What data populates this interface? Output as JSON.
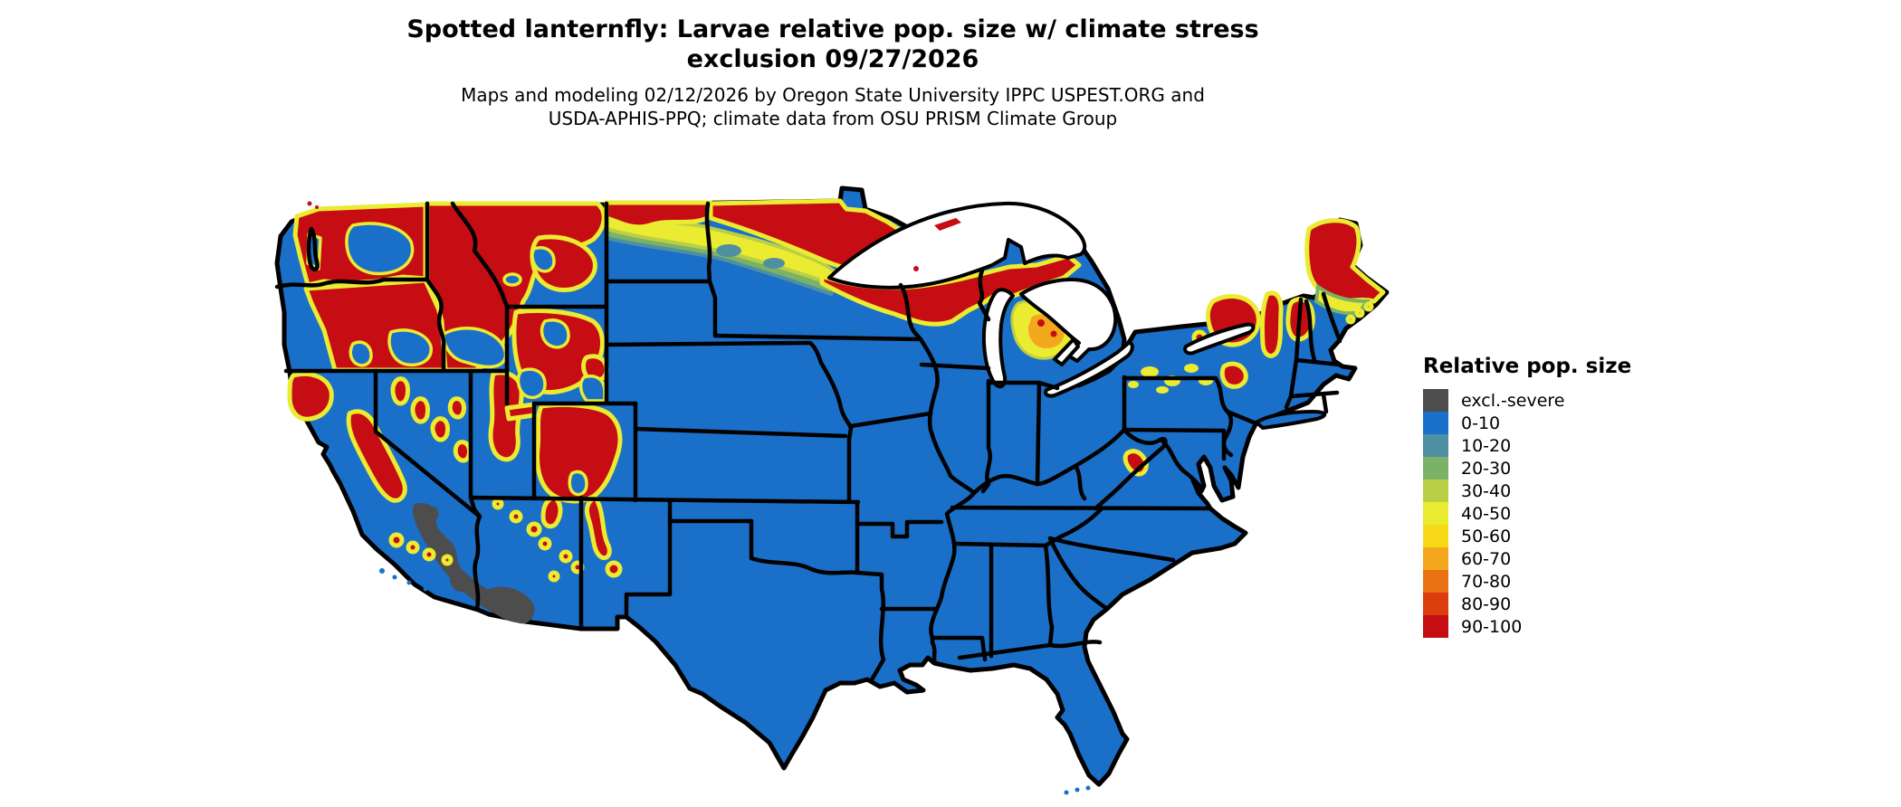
{
  "title": {
    "line1": "Spotted lanternfly: Larvae relative pop. size w/ climate stress",
    "line2": "exclusion 09/27/2026"
  },
  "subtitle": {
    "line1": "Maps and modeling 02/12/2026 by Oregon State University IPPC USPEST.ORG and",
    "line2": "USDA-APHIS-PPQ; climate data from OSU PRISM Climate Group"
  },
  "legend": {
    "title": "Relative pop. size",
    "items": [
      {
        "label": "excl.-severe",
        "color": "#4d4d4d"
      },
      {
        "label": "0-10",
        "color": "#1a6fc8"
      },
      {
        "label": "10-20",
        "color": "#4e90a2"
      },
      {
        "label": "20-30",
        "color": "#7cb168"
      },
      {
        "label": "30-40",
        "color": "#b9cf45"
      },
      {
        "label": "40-50",
        "color": "#ebeb31"
      },
      {
        "label": "50-60",
        "color": "#f7d917"
      },
      {
        "label": "60-70",
        "color": "#f3a71d"
      },
      {
        "label": "70-80",
        "color": "#ea7213"
      },
      {
        "label": "80-90",
        "color": "#dc3d0d"
      },
      {
        "label": "90-100",
        "color": "#c50d13"
      }
    ]
  },
  "map": {
    "region": "Contiguous United States",
    "water_color": "#ffffff",
    "state_border_color": "#000000",
    "high_risk_areas": "Pacific Northwest, Northern Rockies, Northern Plains border, Upper Great Lakes, Adirondacks, Northern New England",
    "excluded_severe_areas": "Mojave and Sonoran deserts (SE California, SW Arizona)",
    "low_risk_areas": "Central, Southern and Eastern US (0-10)"
  }
}
